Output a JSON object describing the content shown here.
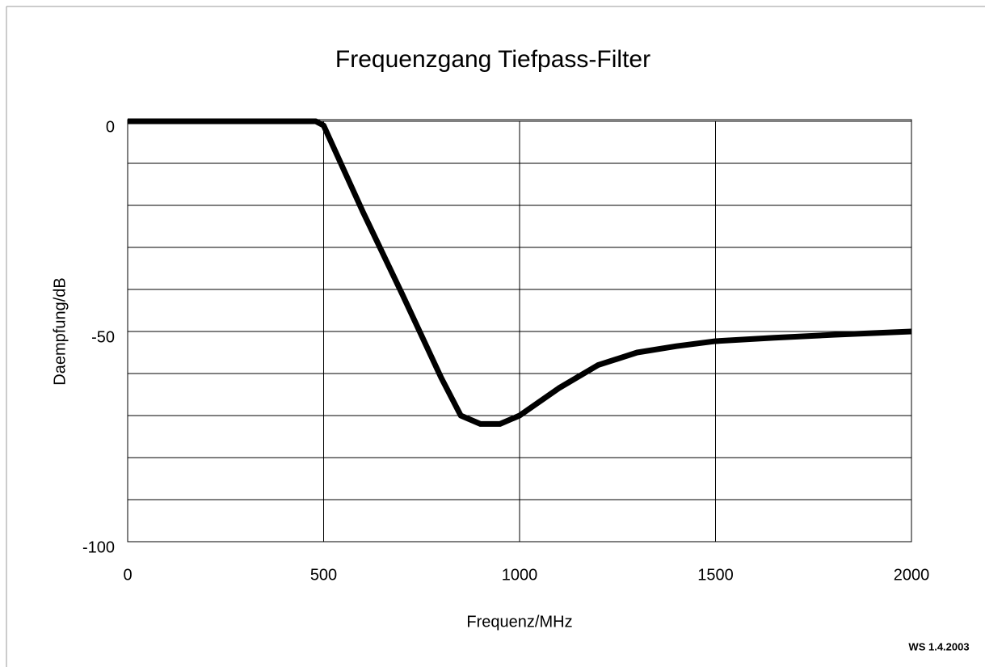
{
  "chart_data": {
    "type": "line",
    "title": "Frequenzgang Tiefpass-Filter",
    "x_label": "Frequenz/MHz",
    "y_label": "Daempfung/dB",
    "footer": "WS 1.4.2003",
    "x": [
      0,
      480,
      500,
      600,
      700,
      800,
      850,
      900,
      950,
      1000,
      1100,
      1200,
      1300,
      1400,
      1500,
      1650,
      1800,
      2000
    ],
    "series": [
      {
        "color": "#000000",
        "values": [
          0,
          0,
          -1,
          -21.5,
          -41,
          -61,
          -70,
          -72,
          -72,
          -70,
          -63.5,
          -58,
          -55,
          -53.5,
          -52.3,
          -51.5,
          -50.8,
          -50
        ]
      }
    ],
    "xlim": [
      0,
      2000
    ],
    "xticks": [
      0,
      500,
      1000,
      1500,
      2000
    ],
    "ylim": [
      -100,
      0
    ],
    "yticks": [
      -100,
      -50,
      0
    ],
    "ygrid": [
      -90,
      -80,
      -70,
      -60,
      -50,
      -40,
      -30,
      -20,
      -10
    ],
    "grid": true
  }
}
